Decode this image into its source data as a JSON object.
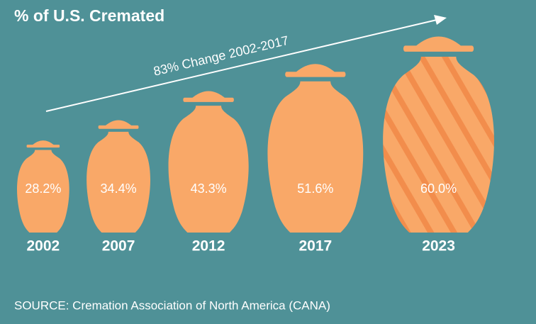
{
  "chart_data": {
    "type": "urn",
    "title": "% of U.S. Cremated",
    "annotation": "83% Change 2002-2017",
    "source": "SOURCE: Cremation Association of North America (CANA)",
    "categories": [
      "2002",
      "2007",
      "2012",
      "2017",
      "2023"
    ],
    "values": [
      28.2,
      34.4,
      43.3,
      51.6,
      60.0
    ],
    "value_labels": [
      "28.2%",
      "34.4%",
      "43.3%",
      "51.6%",
      "60.0%"
    ],
    "hatched": [
      false,
      false,
      false,
      false,
      true
    ],
    "color": "#f9a868",
    "hatch_color": "#f28d4c"
  }
}
